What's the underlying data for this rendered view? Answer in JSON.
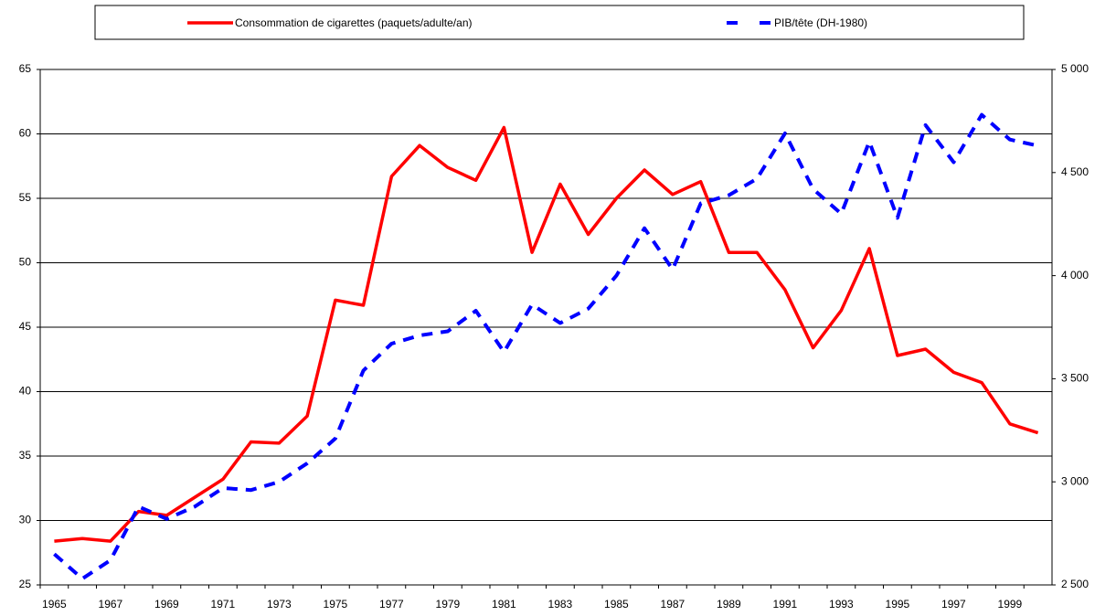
{
  "chart_data": {
    "type": "line",
    "categories": [
      "1965",
      null,
      "1967",
      null,
      "1969",
      null,
      "1971",
      null,
      "1973",
      null,
      "1975",
      null,
      "1977",
      null,
      "1979",
      null,
      "1981",
      null,
      "1983",
      null,
      "1985",
      null,
      "1987",
      null,
      "1989",
      null,
      "1991",
      null,
      "1993",
      null,
      "1995",
      null,
      "1997",
      null,
      "1999",
      null
    ],
    "series": [
      {
        "name": "Consommation de cigarettes (paquets/adulte/an)",
        "color": "#ff0000",
        "dash": "solid",
        "values": [
          28.4,
          28.6,
          28.4,
          30.7,
          30.4,
          31.8,
          33.2,
          36.1,
          36.0,
          38.1,
          47.1,
          46.7,
          56.7,
          59.1,
          57.4,
          56.4,
          60.5,
          50.8,
          56.1,
          52.2,
          55.0,
          57.2,
          55.3,
          56.3,
          50.8,
          50.8,
          47.9,
          43.4,
          46.3,
          51.1,
          42.8,
          43.3,
          41.5,
          40.7,
          37.5,
          36.8
        ]
      },
      {
        "name": "PIB/tête (DH-1980)",
        "color": "#0000ff",
        "dash": "dashed",
        "axis": "y2",
        "values": [
          2650,
          2530,
          2620,
          2880,
          2820,
          2880,
          2970,
          2960,
          3000,
          3090,
          3210,
          3540,
          3670,
          3710,
          3730,
          3830,
          3630,
          3860,
          3770,
          3840,
          4000,
          4230,
          4030,
          4350,
          4390,
          4470,
          4690,
          4420,
          4300,
          4650,
          4280,
          4730,
          4550,
          4780,
          4660,
          4630
        ]
      }
    ],
    "ylim": [
      25,
      65
    ],
    "yticks": [
      25,
      30,
      35,
      40,
      45,
      50,
      55,
      60,
      65
    ],
    "y2lim": [
      2500,
      5000
    ],
    "y2ticks": [
      {
        "value": 2500,
        "label": "2 500"
      },
      {
        "value": 3000,
        "label": "3 000"
      },
      {
        "value": 3500,
        "label": "3 500"
      },
      {
        "value": 4000,
        "label": "4 000"
      },
      {
        "value": 4500,
        "label": "4 500"
      },
      {
        "value": 5000,
        "label": "5 000"
      }
    ],
    "grid": true,
    "legend": "top"
  }
}
